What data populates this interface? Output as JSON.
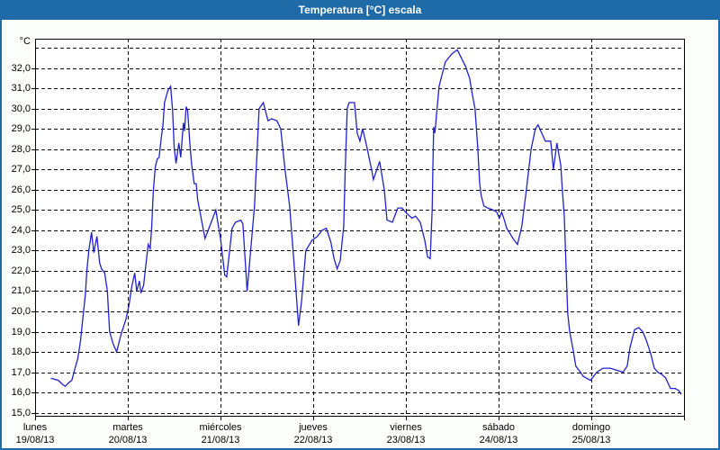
{
  "window": {
    "title": "Temperatura [°C] escala"
  },
  "colors": {
    "header_bg": "#1e6ba8",
    "frame_border": "#1e6ba8",
    "line": "#2121cd",
    "grid": "#000000",
    "text": "#000000",
    "plot_bg": "#ffffff"
  },
  "chart_data": {
    "type": "line",
    "title": "Temperatura [°C] escala",
    "ylabel": "°C",
    "ylim": [
      14.85,
      33.45
    ],
    "xlim_hours": [
      0,
      168
    ],
    "grid": "dashed",
    "legend": "none",
    "y_ticks": [
      {
        "value": 32,
        "label": "32,0"
      },
      {
        "value": 31,
        "label": "31,0"
      },
      {
        "value": 30,
        "label": "30,0"
      },
      {
        "value": 29,
        "label": "29,0"
      },
      {
        "value": 28,
        "label": "28,0"
      },
      {
        "value": 27,
        "label": "27,0"
      },
      {
        "value": 26,
        "label": "26,0"
      },
      {
        "value": 25,
        "label": "25,0"
      },
      {
        "value": 24,
        "label": "24,0"
      },
      {
        "value": 23,
        "label": "23,0"
      },
      {
        "value": 22,
        "label": "22,0"
      },
      {
        "value": 21,
        "label": "21,0"
      },
      {
        "value": 20,
        "label": "20,0"
      },
      {
        "value": 19,
        "label": "19,0"
      },
      {
        "value": 18,
        "label": "18,0"
      },
      {
        "value": 17,
        "label": "17,0"
      },
      {
        "value": 16,
        "label": "16,0"
      },
      {
        "value": 15,
        "label": "15,0"
      }
    ],
    "y_gridline_values": [
      15,
      16,
      17,
      18,
      19,
      20,
      21,
      22,
      23,
      24,
      25,
      26,
      27,
      28,
      29,
      30,
      31,
      32,
      33
    ],
    "x_tick_hours": [
      0,
      24,
      48,
      72,
      96,
      120,
      144,
      168
    ],
    "x_gridline_hours": [
      24,
      48,
      72,
      96,
      120,
      144
    ],
    "days": [
      {
        "name": "lunes",
        "date": "19/08/13",
        "hour": 0
      },
      {
        "name": "martes",
        "date": "20/08/13",
        "hour": 24
      },
      {
        "name": "miércoles",
        "date": "21/08/13",
        "hour": 48
      },
      {
        "name": "jueves",
        "date": "22/08/13",
        "hour": 72
      },
      {
        "name": "viernes",
        "date": "23/08/13",
        "hour": 96
      },
      {
        "name": "sábado",
        "date": "24/08/13",
        "hour": 120
      },
      {
        "name": "domingo",
        "date": "25/08/13",
        "hour": 144
      }
    ],
    "series": [
      {
        "name": "Temperatura",
        "color": "#2121cd",
        "points_hour_temp": [
          [
            4.1,
            16.7
          ],
          [
            6.0,
            16.6
          ],
          [
            7.1,
            16.4
          ],
          [
            7.8,
            16.3
          ],
          [
            8.8,
            16.5
          ],
          [
            9.5,
            16.6
          ],
          [
            10.2,
            17.1
          ],
          [
            11.1,
            17.7
          ],
          [
            11.8,
            18.6
          ],
          [
            12.5,
            19.9
          ],
          [
            13.0,
            20.8
          ],
          [
            13.4,
            22.0
          ],
          [
            13.9,
            23.0
          ],
          [
            14.6,
            23.9
          ],
          [
            15.2,
            22.9
          ],
          [
            16.0,
            23.7
          ],
          [
            16.7,
            22.4
          ],
          [
            17.2,
            22.1
          ],
          [
            18.0,
            21.9
          ],
          [
            18.7,
            21.0
          ],
          [
            19.3,
            19.0
          ],
          [
            20.2,
            18.4
          ],
          [
            21.1,
            18.0
          ],
          [
            22.3,
            18.9
          ],
          [
            23.5,
            19.6
          ],
          [
            24.3,
            20.3
          ],
          [
            25.0,
            21.2
          ],
          [
            25.8,
            21.9
          ],
          [
            26.3,
            21.0
          ],
          [
            27.0,
            21.5
          ],
          [
            27.4,
            20.9
          ],
          [
            28.1,
            21.3
          ],
          [
            28.8,
            22.5
          ],
          [
            29.3,
            23.3
          ],
          [
            29.8,
            23.1
          ],
          [
            30.2,
            24.2
          ],
          [
            30.6,
            25.9
          ],
          [
            31.1,
            27.1
          ],
          [
            31.6,
            27.5
          ],
          [
            32.1,
            27.6
          ],
          [
            32.7,
            28.6
          ],
          [
            33.1,
            29.2
          ],
          [
            33.5,
            30.3
          ],
          [
            34.4,
            30.9
          ],
          [
            35.1,
            31.1
          ],
          [
            35.6,
            29.9
          ],
          [
            36.0,
            28.1
          ],
          [
            36.5,
            27.3
          ],
          [
            37.2,
            28.3
          ],
          [
            37.7,
            27.6
          ],
          [
            38.4,
            29.3
          ],
          [
            38.7,
            28.9
          ],
          [
            39.1,
            30.1
          ],
          [
            39.5,
            29.9
          ],
          [
            40.1,
            28.2
          ],
          [
            40.5,
            27.3
          ],
          [
            41.2,
            26.3
          ],
          [
            41.7,
            26.3
          ],
          [
            42.1,
            25.5
          ],
          [
            43.0,
            24.6
          ],
          [
            44.0,
            23.6
          ],
          [
            44.8,
            24.0
          ],
          [
            45.6,
            24.4
          ],
          [
            46.8,
            25.0
          ],
          [
            48.0,
            23.6
          ],
          [
            49.1,
            21.8
          ],
          [
            49.6,
            21.7
          ],
          [
            51.0,
            24.1
          ],
          [
            51.9,
            24.4
          ],
          [
            53.3,
            24.5
          ],
          [
            53.8,
            24.3
          ],
          [
            54.9,
            21.0
          ],
          [
            55.8,
            23.0
          ],
          [
            56.8,
            25.2
          ],
          [
            58.0,
            30.0
          ],
          [
            59.1,
            30.3
          ],
          [
            60.3,
            29.4
          ],
          [
            61.2,
            29.5
          ],
          [
            62.6,
            29.4
          ],
          [
            63.6,
            29.0
          ],
          [
            64.7,
            27.0
          ],
          [
            65.9,
            25.2
          ],
          [
            67.0,
            22.5
          ],
          [
            68.2,
            19.3
          ],
          [
            69.0,
            20.5
          ],
          [
            70.1,
            23.0
          ],
          [
            71.7,
            23.5
          ],
          [
            73.1,
            23.7
          ],
          [
            74.3,
            24.0
          ],
          [
            75.4,
            24.1
          ],
          [
            76.6,
            23.4
          ],
          [
            77.4,
            22.6
          ],
          [
            78.2,
            22.1
          ],
          [
            79.0,
            22.5
          ],
          [
            79.9,
            24.2
          ],
          [
            80.3,
            27.0
          ],
          [
            80.8,
            30.0
          ],
          [
            81.3,
            30.3
          ],
          [
            82.7,
            30.3
          ],
          [
            83.4,
            28.8
          ],
          [
            84.1,
            28.4
          ],
          [
            84.8,
            29.0
          ],
          [
            85.9,
            28.1
          ],
          [
            87.1,
            27.0
          ],
          [
            87.6,
            26.5
          ],
          [
            89.2,
            27.4
          ],
          [
            90.4,
            26.0
          ],
          [
            91.1,
            24.5
          ],
          [
            92.5,
            24.4
          ],
          [
            93.9,
            25.1
          ],
          [
            95.0,
            25.1
          ],
          [
            96.4,
            24.8
          ],
          [
            97.6,
            24.6
          ],
          [
            98.5,
            24.7
          ],
          [
            99.7,
            24.4
          ],
          [
            100.9,
            23.5
          ],
          [
            101.6,
            22.7
          ],
          [
            102.3,
            22.6
          ],
          [
            102.8,
            25.0
          ],
          [
            103.0,
            27.1
          ],
          [
            103.2,
            29.1
          ],
          [
            103.5,
            28.8
          ],
          [
            104.6,
            31.1
          ],
          [
            106.2,
            32.3
          ],
          [
            107.9,
            32.7
          ],
          [
            109.3,
            32.9
          ],
          [
            111.4,
            32.1
          ],
          [
            112.5,
            31.5
          ],
          [
            113.2,
            30.7
          ],
          [
            113.9,
            30.0
          ],
          [
            114.6,
            28.1
          ],
          [
            115.1,
            26.3
          ],
          [
            115.5,
            25.7
          ],
          [
            116.2,
            25.2
          ],
          [
            117.2,
            25.1
          ],
          [
            118.6,
            25.0
          ],
          [
            119.5,
            24.9
          ],
          [
            120.2,
            24.6
          ],
          [
            120.8,
            24.9
          ],
          [
            121.5,
            24.5
          ],
          [
            122.1,
            24.1
          ],
          [
            123.7,
            23.6
          ],
          [
            124.9,
            23.3
          ],
          [
            126.0,
            24.2
          ],
          [
            127.2,
            26.0
          ],
          [
            128.4,
            28.0
          ],
          [
            129.5,
            29.0
          ],
          [
            130.2,
            29.2
          ],
          [
            131.4,
            28.7
          ],
          [
            132.1,
            28.4
          ],
          [
            133.5,
            28.4
          ],
          [
            134.2,
            27.0
          ],
          [
            135.1,
            28.3
          ],
          [
            136.1,
            27.2
          ],
          [
            136.5,
            26.0
          ],
          [
            137.0,
            24.7
          ],
          [
            137.5,
            22.0
          ],
          [
            137.9,
            19.9
          ],
          [
            138.4,
            19.0
          ],
          [
            139.3,
            18.1
          ],
          [
            140.0,
            17.3
          ],
          [
            141.2,
            17.0
          ],
          [
            141.9,
            16.8
          ],
          [
            142.8,
            16.7
          ],
          [
            143.8,
            16.6
          ],
          [
            145.4,
            17.0
          ],
          [
            147.0,
            17.2
          ],
          [
            148.9,
            17.2
          ],
          [
            150.5,
            17.1
          ],
          [
            152.2,
            17.0
          ],
          [
            153.3,
            17.3
          ],
          [
            154.0,
            18.2
          ],
          [
            155.2,
            19.1
          ],
          [
            156.3,
            19.2
          ],
          [
            157.3,
            19.0
          ],
          [
            158.2,
            18.6
          ],
          [
            159.4,
            17.9
          ],
          [
            160.3,
            17.2
          ],
          [
            161.2,
            17.0
          ],
          [
            162.2,
            16.9
          ],
          [
            163.3,
            16.7
          ],
          [
            164.5,
            16.2
          ],
          [
            165.7,
            16.2
          ],
          [
            166.6,
            16.1
          ],
          [
            167.3,
            15.9
          ]
        ]
      }
    ]
  }
}
